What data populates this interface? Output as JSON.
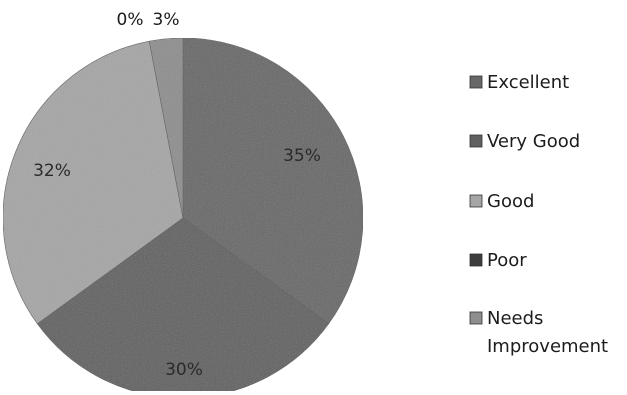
{
  "chart_data": {
    "type": "pie",
    "categories": [
      "Excellent",
      "Very Good",
      "Good",
      "Poor",
      "Needs Improvement"
    ],
    "legend": [
      "Excellent",
      "Very Good",
      "Good",
      "Poor",
      "Needs Improvement"
    ],
    "legend_placement": "right",
    "values": [
      35,
      30,
      32,
      0,
      3
    ],
    "data_labels": [
      "35%",
      "30%",
      "32%",
      "0%",
      "3%"
    ],
    "colors": [
      "#676767",
      "#606060",
      "#a6a6a6",
      "#3d3d3d",
      "#8e8e8e"
    ],
    "title": ""
  }
}
